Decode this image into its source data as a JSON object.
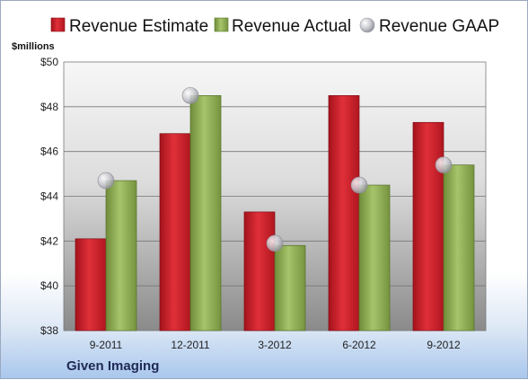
{
  "company": "Given Imaging",
  "colors": {
    "estimate": "#c8202a",
    "actual": "#8fac55",
    "gaap": "#c9c9d1"
  },
  "chart_data": {
    "type": "bar",
    "unit_label": "$millions",
    "categories": [
      "9-2011",
      "12-2011",
      "3-2012",
      "6-2012",
      "9-2012"
    ],
    "series": [
      {
        "name": "Revenue Estimate",
        "values": [
          42.1,
          46.8,
          43.3,
          48.5,
          47.3
        ]
      },
      {
        "name": "Revenue Actual",
        "values": [
          44.7,
          48.5,
          41.8,
          44.5,
          45.4
        ]
      },
      {
        "name": "Revenue GAAP",
        "values": [
          44.7,
          48.5,
          41.9,
          44.5,
          45.4
        ]
      }
    ],
    "ylim": [
      38,
      50
    ],
    "yticks": [
      38,
      40,
      42,
      44,
      46,
      48,
      50
    ],
    "ytick_labels": [
      "$38",
      "$40",
      "$42",
      "$44",
      "$46",
      "$48",
      "$50"
    ],
    "grid": true,
    "legend_position": "top"
  }
}
